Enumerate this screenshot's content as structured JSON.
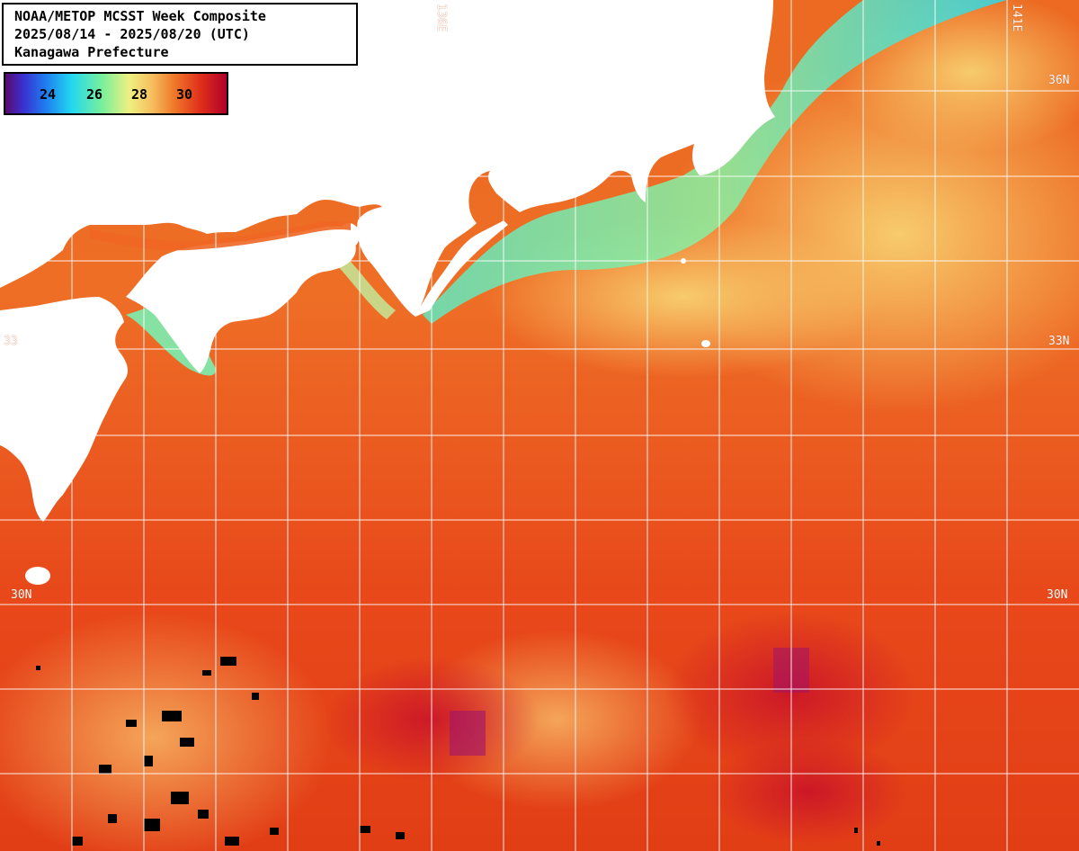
{
  "title": {
    "line1": "NOAA/METOP MCSST Week Composite",
    "line2": "2025/08/14 - 2025/08/20 (UTC)",
    "line3": "Kanagawa Prefecture"
  },
  "legend": {
    "labels": [
      "24",
      "26",
      "28",
      "30"
    ]
  },
  "grid_labels": {
    "lon_136": "136E",
    "lon_141": "141E",
    "lat_36_right": "36N",
    "lat_33_left": "33",
    "lat_33_right": "33N",
    "lat_30_left": "30N",
    "lat_30_right": "30N"
  },
  "colors": {
    "land": "#ffffff",
    "grid": "#ffffff",
    "warm_sea": "#e8541a",
    "cool_coast": "#7af0b0",
    "hot_patch": "#a00040"
  }
}
